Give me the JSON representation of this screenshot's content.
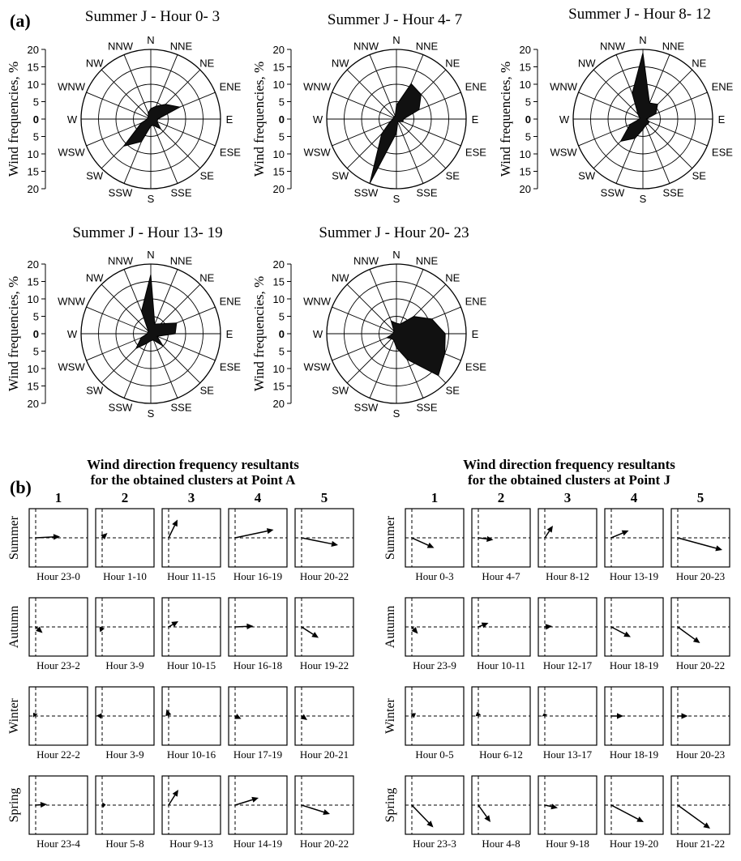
{
  "panel_a": {
    "label": "(a)",
    "y_axis_label": "Wind frequencies, %",
    "r_ticks": [
      "20",
      "15",
      "10",
      "5",
      "0",
      "5",
      "10",
      "15",
      "20"
    ],
    "directions": [
      "N",
      "NNE",
      "NE",
      "ENE",
      "E",
      "ESE",
      "SE",
      "SSE",
      "S",
      "SSW",
      "SW",
      "WSW",
      "W",
      "WNW",
      "NW",
      "NNW"
    ],
    "rmax": 20
  },
  "panel_b": {
    "label": "(b)",
    "title_a_line1": "Wind direction frequency resultants",
    "title_a_line2": "for the obtained clusters at Point A",
    "title_j_line1": "Wind direction frequency resultants",
    "title_j_line2": "for the obtained clusters at Point J",
    "cluster_numbers": [
      "1",
      "2",
      "3",
      "4",
      "5"
    ],
    "seasons": [
      "Summer",
      "Autumn",
      "Winter",
      "Spring"
    ]
  },
  "chart_data": [
    {
      "type": "radar",
      "title": "Summer J  - Hour 0- 3",
      "categories": [
        "N",
        "NNE",
        "NE",
        "ENE",
        "E",
        "ESE",
        "SE",
        "SSE",
        "S",
        "SSW",
        "SW",
        "WSW",
        "W",
        "WNW",
        "NW",
        "NNW"
      ],
      "values": [
        3,
        4,
        6,
        9,
        2,
        2,
        4,
        2,
        2,
        7,
        11,
        3,
        1,
        1,
        1,
        2
      ],
      "rlim": [
        0,
        20
      ]
    },
    {
      "type": "radar",
      "title": "Summer J  - Hour 4- 7",
      "categories": [
        "N",
        "NNE",
        "NE",
        "ENE",
        "E",
        "ESE",
        "SE",
        "SSE",
        "S",
        "SSW",
        "SW",
        "WSW",
        "W",
        "WNW",
        "NW",
        "NNW"
      ],
      "values": [
        4,
        11,
        10,
        7,
        2,
        2,
        1,
        1,
        4,
        20,
        6,
        2,
        1,
        1,
        1,
        1
      ],
      "rlim": [
        0,
        20
      ]
    },
    {
      "type": "radar",
      "title": "Summer J  - Hour 8- 12",
      "categories": [
        "N",
        "NNE",
        "NE",
        "ENE",
        "E",
        "ESE",
        "SE",
        "SSE",
        "S",
        "SSW",
        "SW",
        "WSW",
        "W",
        "WNW",
        "NW",
        "NNW"
      ],
      "values": [
        19,
        5,
        6,
        4,
        1,
        2,
        2,
        2,
        3,
        6,
        9,
        4,
        1,
        1,
        2,
        8
      ],
      "rlim": [
        0,
        20
      ]
    },
    {
      "type": "radar",
      "title": "Summer J  - Hour 13- 19",
      "categories": [
        "N",
        "NNE",
        "NE",
        "ENE",
        "E",
        "ESE",
        "SE",
        "SSE",
        "S",
        "SSW",
        "SW",
        "WSW",
        "W",
        "WNW",
        "NW",
        "NNW"
      ],
      "values": [
        17,
        3,
        4,
        8,
        7,
        2,
        5,
        2,
        2,
        3,
        6,
        3,
        1,
        1,
        1,
        7
      ],
      "rlim": [
        0,
        20
      ]
    },
    {
      "type": "radar",
      "title": "Summer J  - Hour 20- 23",
      "categories": [
        "N",
        "NNE",
        "NE",
        "ENE",
        "E",
        "ESE",
        "SE",
        "SSE",
        "S",
        "SSW",
        "SW",
        "WSW",
        "W",
        "WNW",
        "NW",
        "NNW"
      ],
      "values": [
        3,
        3,
        7,
        11,
        14,
        15,
        17,
        8,
        4,
        2,
        2,
        3,
        1,
        1,
        1,
        4
      ],
      "rlim": [
        0,
        20
      ]
    },
    {
      "type": "vector-grid",
      "title": "Wind direction frequency resultants for the obtained clusters at Point A",
      "rows": [
        {
          "season": "Summer",
          "cells": [
            {
              "hours": "Hour 23-0",
              "u": 0.6,
              "v": 0.03
            },
            {
              "hours": "Hour 1-10",
              "u": 0.13,
              "v": 0.12
            },
            {
              "hours": "Hour 11-15",
              "u": 0.22,
              "v": 0.45
            },
            {
              "hours": "Hour 16-19",
              "u": 0.95,
              "v": 0.2
            },
            {
              "hours": "Hour 20-22",
              "u": 0.9,
              "v": -0.18
            }
          ]
        },
        {
          "season": "Autumn",
          "cells": [
            {
              "hours": "Hour 23-2",
              "u": 0.17,
              "v": -0.15
            },
            {
              "hours": "Hour 3-9",
              "u": -0.05,
              "v": -0.13
            },
            {
              "hours": "Hour 10-15",
              "u": 0.24,
              "v": 0.14
            },
            {
              "hours": "Hour 16-18",
              "u": 0.45,
              "v": 0.02
            },
            {
              "hours": "Hour 19-22",
              "u": 0.42,
              "v": -0.27
            }
          ]
        },
        {
          "season": "Winter",
          "cells": [
            {
              "hours": "Hour 22-2",
              "u": -0.06,
              "v": 0.08
            },
            {
              "hours": "Hour 3-9",
              "u": -0.14,
              "v": 0.01
            },
            {
              "hours": "Hour 10-16",
              "u": -0.05,
              "v": 0.17
            },
            {
              "hours": "Hour 17-19",
              "u": 0.15,
              "v": -0.07
            },
            {
              "hours": "Hour 20-21",
              "u": 0.14,
              "v": -0.1
            }
          ]
        },
        {
          "season": "Spring",
          "cells": [
            {
              "hours": "Hour 23-4",
              "u": 0.28,
              "v": 0.02
            },
            {
              "hours": "Hour 5-8",
              "u": 0.09,
              "v": 0.01
            },
            {
              "hours": "Hour 9-13",
              "u": 0.24,
              "v": 0.38
            },
            {
              "hours": "Hour 14-19",
              "u": 0.58,
              "v": 0.18
            },
            {
              "hours": "Hour 20-22",
              "u": 0.7,
              "v": -0.22
            }
          ]
        }
      ]
    },
    {
      "type": "vector-grid",
      "title": "Wind direction frequency resultants for the obtained clusters at Point J",
      "rows": [
        {
          "season": "Summer",
          "cells": [
            {
              "hours": "Hour 0-3",
              "u": 0.55,
              "v": -0.25
            },
            {
              "hours": "Hour 4-7",
              "u": 0.37,
              "v": -0.05
            },
            {
              "hours": "Hour 8-12",
              "u": 0.2,
              "v": 0.3
            },
            {
              "hours": "Hour 13-19",
              "u": 0.43,
              "v": 0.18
            },
            {
              "hours": "Hour 20-23",
              "u": 1.1,
              "v": -0.3
            }
          ]
        },
        {
          "season": "Autumn",
          "cells": [
            {
              "hours": "Hour 23-9",
              "u": 0.15,
              "v": -0.17
            },
            {
              "hours": "Hour 10-11",
              "u": 0.25,
              "v": 0.1
            },
            {
              "hours": "Hour 12-17",
              "u": 0.18,
              "v": 0.02
            },
            {
              "hours": "Hour 18-19",
              "u": 0.48,
              "v": -0.25
            },
            {
              "hours": "Hour 20-22",
              "u": 0.55,
              "v": -0.4
            }
          ]
        },
        {
          "season": "Winter",
          "cells": [
            {
              "hours": "Hour 0-5",
              "u": 0.1,
              "v": 0.07
            },
            {
              "hours": "Hour 6-12",
              "u": -0.03,
              "v": 0.1
            },
            {
              "hours": "Hour 13-17",
              "u": -0.02,
              "v": 0.07
            },
            {
              "hours": "Hour 18-19",
              "u": 0.3,
              "v": 0.0
            },
            {
              "hours": "Hour 20-23",
              "u": 0.25,
              "v": 0.0
            }
          ]
        },
        {
          "season": "Spring",
          "cells": [
            {
              "hours": "Hour 23-3",
              "u": 0.53,
              "v": -0.55
            },
            {
              "hours": "Hour 4-8",
              "u": 0.3,
              "v": -0.42
            },
            {
              "hours": "Hour 9-18",
              "u": 0.32,
              "v": -0.07
            },
            {
              "hours": "Hour 19-20",
              "u": 0.8,
              "v": -0.42
            },
            {
              "hours": "Hour 21-22",
              "u": 0.8,
              "v": -0.58
            }
          ]
        }
      ]
    }
  ]
}
